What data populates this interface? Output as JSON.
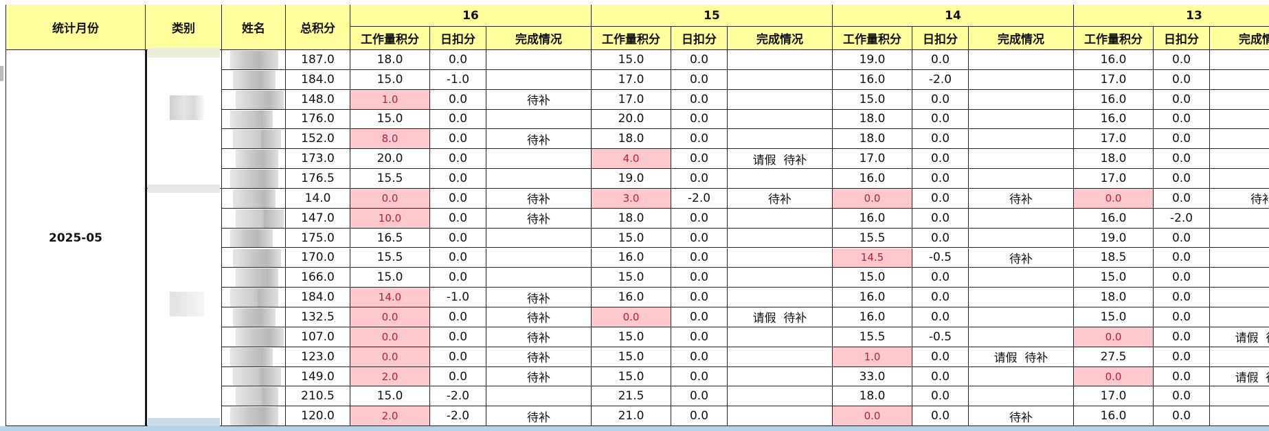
{
  "headers": {
    "month": "统计月份",
    "category": "类别",
    "name": "姓名",
    "total": "总积分",
    "work": "工作量积分",
    "deduct": "日扣分",
    "status": "完成情况"
  },
  "days": [
    "16",
    "15",
    "14",
    "13"
  ],
  "month": "2025-05",
  "rows": [
    [
      "187.0",
      [
        "18.0",
        "0.0",
        null
      ],
      [
        "15.0",
        "0.0",
        null
      ],
      [
        "19.0",
        "0.0",
        null
      ],
      [
        "16.0",
        "0.0",
        null
      ]
    ],
    [
      "184.0",
      [
        "15.0",
        "-1.0",
        null
      ],
      [
        "17.0",
        "0.0",
        null
      ],
      [
        "16.0",
        "-2.0",
        null
      ],
      [
        "17.0",
        "0.0",
        null
      ]
    ],
    [
      "148.0",
      [
        "1.0",
        "0.0",
        "待补"
      ],
      [
        "17.0",
        "0.0",
        null
      ],
      [
        "15.0",
        "0.0",
        null
      ],
      [
        "16.0",
        "0.0",
        null
      ]
    ],
    [
      "176.0",
      [
        "15.0",
        "0.0",
        null
      ],
      [
        "20.0",
        "0.0",
        null
      ],
      [
        "18.0",
        "0.0",
        null
      ],
      [
        "16.0",
        "0.0",
        null
      ]
    ],
    [
      "152.0",
      [
        "8.0",
        "0.0",
        "待补"
      ],
      [
        "18.0",
        "0.0",
        null
      ],
      [
        "18.0",
        "0.0",
        null
      ],
      [
        "17.0",
        "0.0",
        null
      ]
    ],
    [
      "173.0",
      [
        "20.0",
        "0.0",
        null
      ],
      [
        "4.0",
        "0.0",
        "请假  待补"
      ],
      [
        "17.0",
        "0.0",
        null
      ],
      [
        "18.0",
        "0.0",
        null
      ]
    ],
    [
      "176.5",
      [
        "15.5",
        "0.0",
        null
      ],
      [
        "19.0",
        "0.0",
        null
      ],
      [
        "16.0",
        "0.0",
        null
      ],
      [
        "17.0",
        "0.0",
        null
      ]
    ],
    [
      "14.0",
      [
        "0.0",
        "0.0",
        "待补"
      ],
      [
        "3.0",
        "-2.0",
        "待补"
      ],
      [
        "0.0",
        "0.0",
        "待补"
      ],
      [
        "0.0",
        "0.0",
        "待补"
      ]
    ],
    [
      "147.0",
      [
        "10.0",
        "0.0",
        "待补"
      ],
      [
        "18.0",
        "0.0",
        null
      ],
      [
        "16.0",
        "0.0",
        null
      ],
      [
        "16.0",
        "-2.0",
        null
      ]
    ],
    [
      "175.0",
      [
        "16.5",
        "0.0",
        null
      ],
      [
        "15.0",
        "0.0",
        null
      ],
      [
        "15.5",
        "0.0",
        null
      ],
      [
        "19.0",
        "0.0",
        null
      ]
    ],
    [
      "170.0",
      [
        "15.5",
        "0.0",
        null
      ],
      [
        "16.0",
        "0.0",
        null
      ],
      [
        "14.5",
        "-0.5",
        "待补"
      ],
      [
        "18.5",
        "0.0",
        null
      ]
    ],
    [
      "166.0",
      [
        "15.0",
        "0.0",
        null
      ],
      [
        "15.0",
        "0.0",
        null
      ],
      [
        "15.0",
        "0.0",
        null
      ],
      [
        "15.0",
        "0.0",
        null
      ]
    ],
    [
      "184.0",
      [
        "14.0",
        "-1.0",
        "待补"
      ],
      [
        "16.0",
        "0.0",
        null
      ],
      [
        "16.0",
        "0.0",
        null
      ],
      [
        "18.0",
        "0.0",
        null
      ]
    ],
    [
      "132.5",
      [
        "0.0",
        "0.0",
        "待补"
      ],
      [
        "0.0",
        "0.0",
        "请假  待补"
      ],
      [
        "16.0",
        "0.0",
        null
      ],
      [
        "15.0",
        "0.0",
        null
      ]
    ],
    [
      "107.0",
      [
        "0.0",
        "0.0",
        "待补"
      ],
      [
        "15.0",
        "0.0",
        null
      ],
      [
        "15.5",
        "-0.5",
        null
      ],
      [
        "0.0",
        "0.0",
        "请假  待补"
      ]
    ],
    [
      "123.0",
      [
        "0.0",
        "0.0",
        "待补"
      ],
      [
        "15.0",
        "0.0",
        null
      ],
      [
        "1.0",
        "0.0",
        "请假  待补"
      ],
      [
        "27.5",
        "0.0",
        null
      ]
    ],
    [
      "149.0",
      [
        "2.0",
        "0.0",
        "待补"
      ],
      [
        "15.0",
        "0.0",
        null
      ],
      [
        "33.0",
        "0.0",
        null
      ],
      [
        "0.0",
        "0.0",
        "请假  待补"
      ]
    ],
    [
      "210.5",
      [
        "15.0",
        "-2.0",
        null
      ],
      [
        "21.5",
        "0.0",
        null
      ],
      [
        "18.0",
        "0.0",
        null
      ],
      [
        "17.0",
        "0.0",
        null
      ]
    ],
    [
      "120.0",
      [
        "2.0",
        "-2.0",
        "待补"
      ],
      [
        "21.0",
        "0.0",
        null
      ],
      [
        "0.0",
        "0.0",
        "待补"
      ],
      [
        "16.0",
        "0.0",
        null
      ]
    ]
  ]
}
